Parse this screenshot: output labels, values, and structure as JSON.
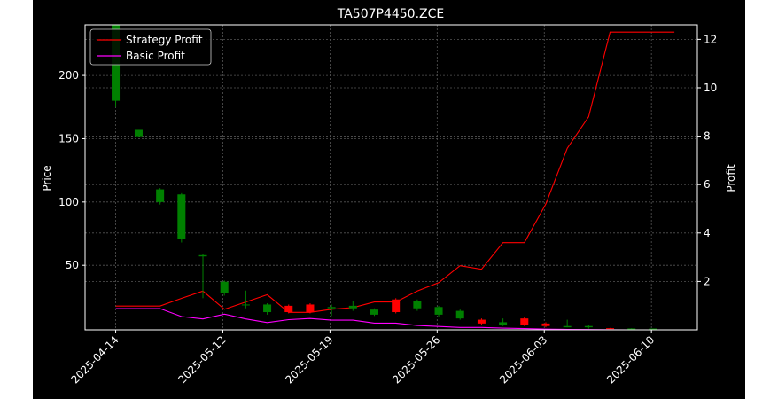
{
  "chart_data": {
    "type": "candlestick_with_lines",
    "title": "TA507P4450.ZCE",
    "ylabel_left": "Price",
    "ylabel_right": "Profit",
    "ylim_left": [
      -1,
      240
    ],
    "ylim_right": [
      0,
      12.6
    ],
    "yticks_left": [
      50,
      100,
      150,
      200
    ],
    "yticks_right": [
      2,
      4,
      6,
      8,
      10,
      12
    ],
    "xticks": [
      "2025-04-14",
      "2025-05-12",
      "2025-05-19",
      "2025-05-26",
      "2025-06-03",
      "2025-06-10"
    ],
    "xtick_index": [
      0,
      7,
      14,
      21,
      28,
      35
    ],
    "xlim_index": [
      -2,
      38
    ],
    "grid": true,
    "legend_position": "top-left",
    "colors": {
      "up": "#008000",
      "down": "#ff0000",
      "strategy": "#ff0000",
      "basic": "#ff00ff"
    },
    "candles": [
      {
        "i": 0,
        "o": 180,
        "c": 240,
        "h": 240,
        "l": 175
      },
      {
        "i": 1.5,
        "o": 152,
        "c": 157,
        "h": 157,
        "l": 151
      },
      {
        "i": 2.9,
        "o": 100,
        "c": 110,
        "h": 111,
        "l": 98
      },
      {
        "i": 4.3,
        "o": 71,
        "c": 106,
        "h": 107,
        "l": 68
      },
      {
        "i": 5.7,
        "o": 57,
        "c": 58,
        "h": 59,
        "l": 24
      },
      {
        "i": 7.1,
        "o": 28,
        "c": 37,
        "h": 38,
        "l": 26
      },
      {
        "i": 8.5,
        "o": 19,
        "c": 19,
        "h": 30,
        "l": 16
      },
      {
        "i": 9.9,
        "o": 13,
        "c": 19,
        "h": 20,
        "l": 11
      },
      {
        "i": 11.3,
        "o": 18,
        "c": 13,
        "h": 19,
        "l": 12
      },
      {
        "i": 12.7,
        "o": 19,
        "c": 13,
        "h": 20,
        "l": 12
      },
      {
        "i": 14.1,
        "o": 16,
        "c": 17,
        "h": 19,
        "l": 10
      },
      {
        "i": 15.5,
        "o": 16,
        "c": 18,
        "h": 22,
        "l": 14
      },
      {
        "i": 16.9,
        "o": 11,
        "c": 15,
        "h": 16,
        "l": 10
      },
      {
        "i": 18.3,
        "o": 23,
        "c": 13,
        "h": 24,
        "l": 12
      },
      {
        "i": 19.7,
        "o": 16,
        "c": 22,
        "h": 23,
        "l": 14
      },
      {
        "i": 21.1,
        "o": 11,
        "c": 17,
        "h": 18,
        "l": 9
      },
      {
        "i": 22.5,
        "o": 8,
        "c": 14,
        "h": 15,
        "l": 7
      },
      {
        "i": 23.9,
        "o": 7,
        "c": 4,
        "h": 8,
        "l": 3
      },
      {
        "i": 25.3,
        "o": 3,
        "c": 5,
        "h": 8,
        "l": 2
      },
      {
        "i": 26.7,
        "o": 8,
        "c": 3,
        "h": 9,
        "l": 2
      },
      {
        "i": 28.1,
        "o": 4,
        "c": 2,
        "h": 5,
        "l": 1
      },
      {
        "i": 29.5,
        "o": 1,
        "c": 2,
        "h": 7,
        "l": 1
      },
      {
        "i": 30.9,
        "o": 1,
        "c": 2,
        "h": 3,
        "l": 0
      },
      {
        "i": 32.3,
        "o": 0.3,
        "c": 0.2,
        "h": 0.5,
        "l": 0
      },
      {
        "i": 33.7,
        "o": 0.1,
        "c": 0.1,
        "h": 0.3,
        "l": 0
      },
      {
        "i": 35.1,
        "o": 0.05,
        "c": 0.05,
        "h": 0.1,
        "l": 0
      }
    ],
    "series": [
      {
        "name": "Strategy Profit",
        "x": [
          0,
          2.9,
          4.3,
          5.7,
          7.1,
          8.5,
          9.9,
          11.3,
          12.7,
          14.1,
          15.5,
          16.9,
          18.3,
          19.7,
          21.1,
          22.5,
          23.9,
          25.3,
          26.7,
          28.1,
          29.5,
          30.9,
          32.3,
          33.7,
          35.1,
          36.5
        ],
        "values": [
          0.98,
          0.98,
          1.3,
          1.6,
          0.85,
          1.15,
          1.45,
          0.72,
          0.72,
          0.85,
          0.92,
          1.15,
          1.15,
          1.6,
          1.95,
          2.65,
          2.5,
          3.6,
          3.6,
          5.2,
          7.5,
          8.8,
          12.3,
          12.3,
          12.3,
          12.3
        ]
      },
      {
        "name": "Basic Profit",
        "x": [
          0,
          2.9,
          4.3,
          5.7,
          7.1,
          8.5,
          9.9,
          11.3,
          12.7,
          14.1,
          15.5,
          16.9,
          18.3,
          19.7,
          21.1,
          22.5,
          23.9,
          25.3,
          26.7,
          28.1,
          29.5,
          30.9,
          32.3,
          33.7,
          35.1,
          36.5
        ],
        "values": [
          0.88,
          0.88,
          0.55,
          0.45,
          0.65,
          0.45,
          0.3,
          0.42,
          0.47,
          0.4,
          0.4,
          0.28,
          0.28,
          0.18,
          0.14,
          0.1,
          0.1,
          0.07,
          0.05,
          0.03,
          0.02,
          0.01,
          0.005,
          0,
          0,
          0
        ]
      }
    ]
  }
}
